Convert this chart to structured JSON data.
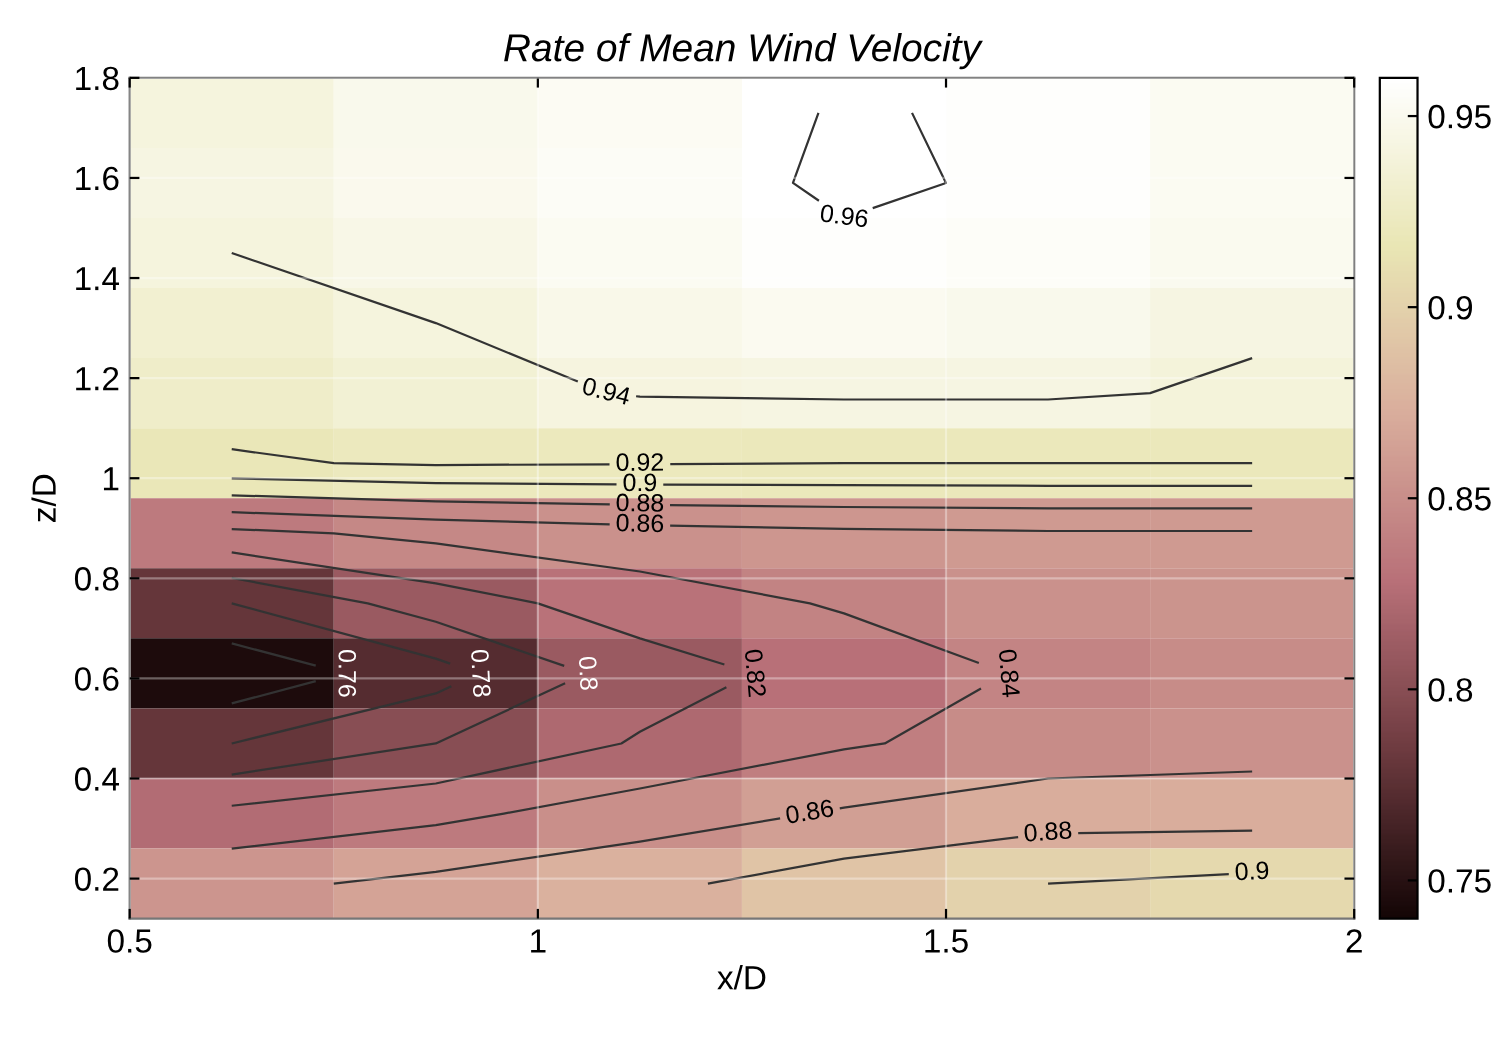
{
  "chart_data": {
    "type": "heatmap",
    "title": "Rate of Mean Wind Velocity",
    "xlabel": "x/D",
    "ylabel": "z/D",
    "x": [
      0.625,
      0.875,
      1.125,
      1.375,
      1.625,
      1.875
    ],
    "y": [
      1.73,
      1.59,
      1.45,
      1.31,
      1.17,
      1.03,
      0.89,
      0.75,
      0.61,
      0.47,
      0.33,
      0.19
    ],
    "cells": [
      [
        0.94,
        0.948,
        0.953,
        0.961,
        0.958,
        0.952
      ],
      [
        0.942,
        0.949,
        0.954,
        0.962,
        0.958,
        0.952
      ],
      [
        0.94,
        0.946,
        0.952,
        0.958,
        0.955,
        0.95
      ],
      [
        0.933,
        0.94,
        0.947,
        0.951,
        0.948,
        0.942
      ],
      [
        0.928,
        0.935,
        0.941,
        0.942,
        0.942,
        0.938
      ],
      [
        0.918,
        0.922,
        0.921,
        0.92,
        0.92,
        0.92
      ],
      [
        0.835,
        0.845,
        0.852,
        0.856,
        0.858,
        0.858
      ],
      [
        0.78,
        0.81,
        0.83,
        0.842,
        0.852,
        0.854
      ],
      [
        0.745,
        0.772,
        0.81,
        0.828,
        0.843,
        0.848
      ],
      [
        0.78,
        0.8,
        0.822,
        0.838,
        0.848,
        0.852
      ],
      [
        0.825,
        0.835,
        0.85,
        0.862,
        0.872,
        0.872
      ],
      [
        0.855,
        0.865,
        0.875,
        0.89,
        0.9,
        0.905
      ]
    ],
    "xlim": [
      0.5,
      2
    ],
    "ylim": [
      0.12,
      1.8
    ],
    "xticks": [
      {
        "value": 0.5,
        "label": "0.5"
      },
      {
        "value": 1,
        "label": "1"
      },
      {
        "value": 1.5,
        "label": "1.5"
      },
      {
        "value": 2,
        "label": "2"
      }
    ],
    "yticks": [
      {
        "value": 0.2,
        "label": "0.2"
      },
      {
        "value": 0.4,
        "label": "0.4"
      },
      {
        "value": 0.6,
        "label": "0.6"
      },
      {
        "value": 0.8,
        "label": "0.8"
      },
      {
        "value": 1,
        "label": "1"
      },
      {
        "value": 1.2,
        "label": "1.2"
      },
      {
        "value": 1.4,
        "label": "1.4"
      },
      {
        "value": 1.6,
        "label": "1.6"
      },
      {
        "value": 1.8,
        "label": "1.8"
      }
    ],
    "clim": [
      0.74,
      0.96
    ],
    "cticks": [
      0.75,
      0.8,
      0.85,
      0.9,
      0.95
    ],
    "grid": true,
    "annotations": [
      "0.76",
      "0.78",
      "0.8",
      "0.82",
      "0.84",
      "0.86",
      "0.88",
      "0.9",
      "0.92",
      "0.94",
      "0.96"
    ]
  }
}
